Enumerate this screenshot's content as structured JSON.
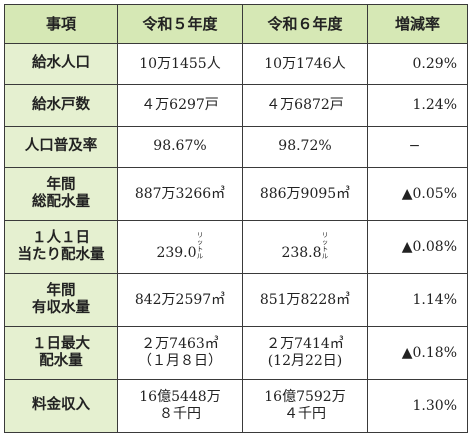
{
  "table": {
    "headers": [
      "事項",
      "令和５年度",
      "令和６年度",
      "増減率"
    ],
    "rows": [
      {
        "item": [
          "給水人口"
        ],
        "r5": [
          "10万1455人"
        ],
        "r6": [
          "10万1746人"
        ],
        "change": "0.29%"
      },
      {
        "item": [
          "給水戸数"
        ],
        "r5": [
          "４万6297戸"
        ],
        "r6": [
          "４万6872戸"
        ],
        "change": "1.24%"
      },
      {
        "item": [
          "人口普及率"
        ],
        "r5": [
          "98.67%"
        ],
        "r6": [
          "98.72%"
        ],
        "change": "−"
      },
      {
        "item": [
          "年間",
          "総配水量"
        ],
        "r5": [
          "887万3266㎥"
        ],
        "r6": [
          "886万9095㎥"
        ],
        "change": "▲0.05%"
      },
      {
        "item": [
          "１人１日",
          "当たり配水量"
        ],
        "r5": [
          "239.0"
        ],
        "r6": [
          "238.8"
        ],
        "r5_unit": "リットル",
        "r6_unit": "リットル",
        "change": "▲0.08%"
      },
      {
        "item": [
          "年間",
          "有収水量"
        ],
        "r5": [
          "842万2597㎥"
        ],
        "r6": [
          "851万8228㎥"
        ],
        "change": "1.14%"
      },
      {
        "item": [
          "１日最大",
          "配水量"
        ],
        "r5": [
          "２万7463㎥",
          "（１月８日）"
        ],
        "r6": [
          "２万7414㎥",
          "(12月22日)"
        ],
        "change": "▲0.18%"
      },
      {
        "item": [
          "料金収入"
        ],
        "r5": [
          "16億5448万",
          "８千円"
        ],
        "r6": [
          "16億7592万",
          "４千円"
        ],
        "change": "1.30%"
      }
    ]
  }
}
